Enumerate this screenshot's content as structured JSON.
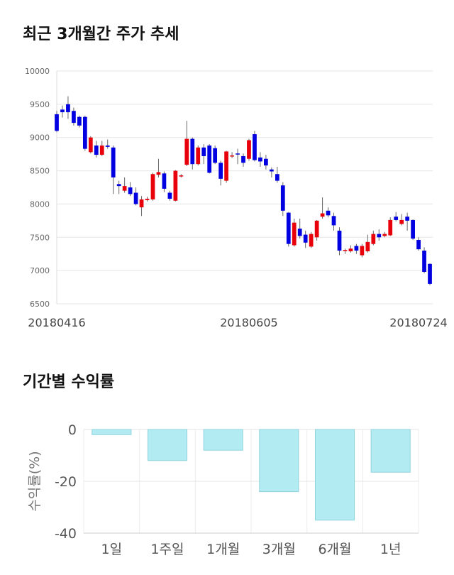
{
  "section1": {
    "title": "최근 3개월간 주가 추세"
  },
  "section2": {
    "title": "기간별 수익률"
  },
  "chart_data": [
    {
      "type": "candlestick",
      "title": "최근 3개월간 주가 추세",
      "ylim": [
        6500,
        10000
      ],
      "yticks": [
        6500,
        7000,
        7500,
        8000,
        8500,
        9000,
        9500,
        10000
      ],
      "xtick_labels": [
        {
          "index": 0,
          "label": "20180416"
        },
        {
          "index": 34,
          "label": "20180605"
        },
        {
          "index": 68,
          "label": "20180724"
        }
      ],
      "grid": true,
      "up_color": "#e8000b",
      "down_color": "#0000e0",
      "candles": [
        [
          9350,
          9100,
          9400,
          9080
        ],
        [
          9420,
          9380,
          9480,
          9300
        ],
        [
          9500,
          9380,
          9620,
          9280
        ],
        [
          9400,
          9220,
          9450,
          9180
        ],
        [
          9310,
          9180,
          9330,
          9150
        ],
        [
          9310,
          8830,
          9330,
          8800
        ],
        [
          8780,
          9000,
          9020,
          8760
        ],
        [
          8880,
          8740,
          8950,
          8700
        ],
        [
          8740,
          8880,
          8950,
          8720
        ],
        [
          8880,
          8860,
          8970,
          8830
        ],
        [
          8850,
          8400,
          8880,
          8150
        ],
        [
          8300,
          8270,
          8350,
          8150
        ],
        [
          8200,
          8270,
          8400,
          8170
        ],
        [
          8250,
          8150,
          8330,
          8120
        ],
        [
          8170,
          8000,
          8250,
          7980
        ],
        [
          7950,
          8070,
          8120,
          7820
        ],
        [
          8060,
          8080,
          8110,
          8040
        ],
        [
          8070,
          8450,
          8470,
          8050
        ],
        [
          8440,
          8480,
          8680,
          8400
        ],
        [
          8460,
          8230,
          8490,
          8180
        ],
        [
          8170,
          8080,
          8200,
          8050
        ],
        [
          8050,
          8500,
          8510,
          8040
        ],
        [
          8420,
          8430,
          8450,
          8400
        ],
        [
          8590,
          8980,
          9250,
          8570
        ],
        [
          8980,
          8600,
          9000,
          8520
        ],
        [
          8600,
          8850,
          8880,
          8580
        ],
        [
          8850,
          8720,
          8900,
          8600
        ],
        [
          8880,
          8470,
          8900,
          8460
        ],
        [
          8840,
          8620,
          8880,
          8600
        ],
        [
          8620,
          8380,
          8650,
          8280
        ],
        [
          8350,
          8790,
          8800,
          8320
        ],
        [
          8720,
          8730,
          8780,
          8690
        ],
        [
          8760,
          8750,
          8830,
          8600
        ],
        [
          8720,
          8620,
          8760,
          8560
        ],
        [
          8680,
          8960,
          8980,
          8650
        ],
        [
          9050,
          8660,
          9100,
          8640
        ],
        [
          8700,
          8640,
          8780,
          8560
        ],
        [
          8680,
          8580,
          8740,
          8520
        ],
        [
          8520,
          8490,
          8550,
          8400
        ],
        [
          8450,
          8350,
          8560,
          8320
        ],
        [
          8280,
          7900,
          8330,
          7820
        ],
        [
          7870,
          7400,
          7880,
          7360
        ],
        [
          7380,
          7720,
          7780,
          7360
        ],
        [
          7630,
          7520,
          7780,
          7480
        ],
        [
          7540,
          7420,
          7600,
          7340
        ],
        [
          7360,
          7550,
          7580,
          7340
        ],
        [
          7500,
          7750,
          7760,
          7450
        ],
        [
          7810,
          7860,
          8100,
          7780
        ],
        [
          7900,
          7830,
          7950,
          7800
        ],
        [
          7820,
          7680,
          7870,
          7600
        ],
        [
          7600,
          7300,
          7650,
          7230
        ],
        [
          7300,
          7310,
          7330,
          7250
        ],
        [
          7290,
          7330,
          7380,
          7270
        ],
        [
          7370,
          7300,
          7400,
          7250
        ],
        [
          7230,
          7370,
          7400,
          7200
        ],
        [
          7290,
          7430,
          7540,
          7270
        ],
        [
          7400,
          7550,
          7600,
          7380
        ],
        [
          7550,
          7500,
          7620,
          7450
        ],
        [
          7520,
          7550,
          7580,
          7500
        ],
        [
          7530,
          7760,
          7800,
          7520
        ],
        [
          7810,
          7760,
          7880,
          7740
        ],
        [
          7700,
          7760,
          7850,
          7680
        ],
        [
          7810,
          7750,
          7870,
          7600
        ],
        [
          7760,
          7480,
          7770,
          7460
        ],
        [
          7460,
          7320,
          7500,
          7300
        ],
        [
          7300,
          6980,
          7350,
          6960
        ],
        [
          7100,
          6800,
          7110,
          6780
        ]
      ]
    },
    {
      "type": "bar",
      "title": "기간별 수익률",
      "ylabel": "수익률(%)",
      "categories": [
        "1일",
        "1주일",
        "1개월",
        "3개월",
        "6개월",
        "1년"
      ],
      "values": [
        -2,
        -12,
        -8,
        -24,
        -35,
        -16.5
      ],
      "ylim": [
        -40,
        0
      ],
      "yticks": [
        0,
        -20,
        -40
      ],
      "bar_color": "#b2ebf2",
      "bar_border_color": "#8fd3dd",
      "grid": true
    }
  ]
}
